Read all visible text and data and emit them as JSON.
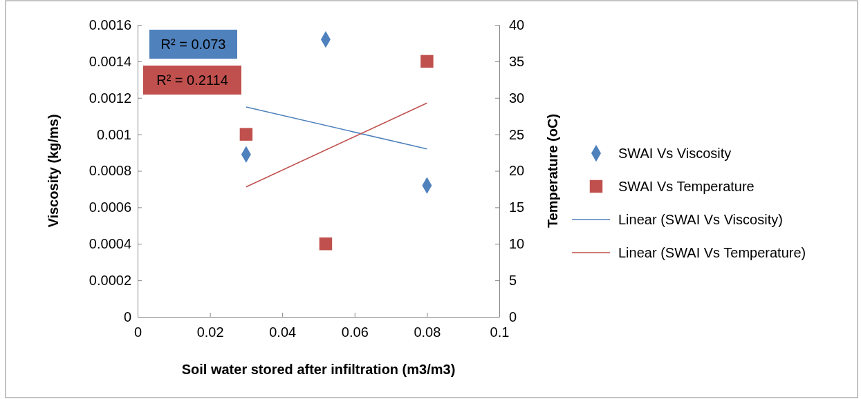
{
  "chart_data": {
    "type": "scatter",
    "xlabel": "Soil water stored after infiltration (m3/m3)",
    "ylabel": "Viscosity (kg/ms)",
    "y2label": "Temperature (oC)",
    "xlim": [
      0,
      0.1
    ],
    "xticks": [
      0,
      0.02,
      0.04,
      0.06,
      0.08,
      0.1
    ],
    "ylim": [
      0,
      0.0016
    ],
    "yticks": [
      0,
      0.0002,
      0.0004,
      0.0006,
      0.0008,
      0.001,
      0.0012,
      0.0014,
      0.0016
    ],
    "y2lim": [
      0,
      40
    ],
    "y2ticks": [
      0,
      5,
      10,
      15,
      20,
      25,
      30,
      35,
      40
    ],
    "grid": false,
    "legend": "right",
    "annotations": [
      "R² = 0.073",
      "R² = 0.2114"
    ],
    "series": [
      {
        "name": "SWAI Vs Viscosity",
        "marker": "diamond",
        "color": "#4f81bd",
        "x": [
          0.03,
          0.052,
          0.08
        ],
        "values": [
          0.00089,
          0.00152,
          0.00072
        ]
      },
      {
        "name": "SWAI Vs Temperature",
        "marker": "square",
        "color": "#c0504d",
        "axis": "y2",
        "x": [
          0.03,
          0.052,
          0.08
        ],
        "values": [
          25,
          10,
          35
        ]
      },
      {
        "name": "Linear (SWAI Vs Viscosity)",
        "type": "line",
        "marker": "none",
        "color": "#4f81bd",
        "x": [
          0.03,
          0.08
        ],
        "values": [
          0.00115,
          0.00092
        ]
      },
      {
        "name": "Linear (SWAI Vs Temperature)",
        "type": "line",
        "marker": "none",
        "color": "#c0504d",
        "axis": "y2",
        "x": [
          0.03,
          0.08
        ],
        "values": [
          17.8,
          29.3
        ]
      }
    ]
  }
}
